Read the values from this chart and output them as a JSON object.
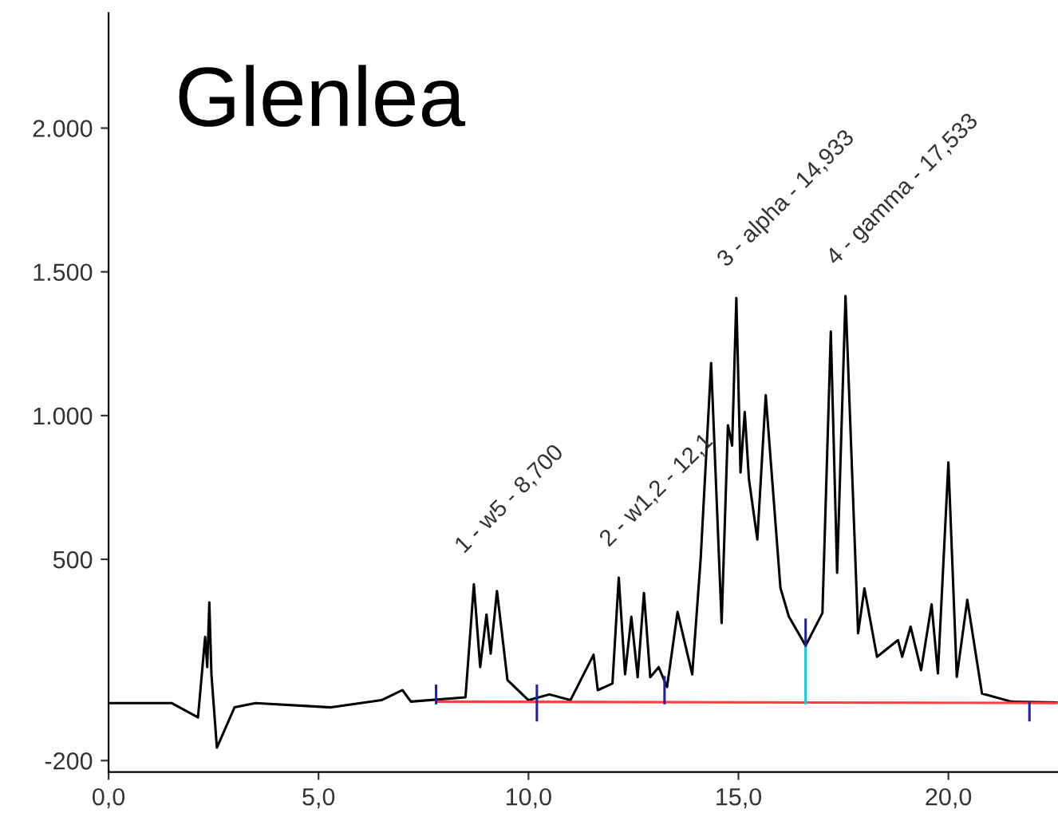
{
  "chart_data": {
    "type": "line",
    "title": "Glenlea",
    "series": [
      {
        "color": "#000000",
        "x": [
          0,
          1.5,
          2.13,
          2.3,
          2.35,
          2.4,
          2.45,
          2.58,
          3.0,
          3.5,
          5.3,
          6.5,
          7.0,
          7.2,
          8.5,
          8.7,
          8.85,
          9.0,
          9.1,
          9.25,
          9.5,
          10.0,
          10.5,
          11.0,
          11.55,
          11.65,
          12.0,
          12.15,
          12.3,
          12.45,
          12.6,
          12.75,
          12.9,
          13.1,
          13.3,
          13.55,
          13.9,
          14.1,
          14.35,
          14.6,
          14.75,
          14.85,
          14.95,
          15.05,
          15.15,
          15.25,
          15.45,
          15.65,
          16.0,
          16.2,
          16.6,
          17.0,
          17.2,
          17.35,
          17.55,
          17.85,
          18.0,
          18.3,
          18.8,
          18.9,
          19.1,
          19.35,
          19.6,
          19.75,
          20.0,
          20.2,
          20.45,
          20.8,
          21.5,
          22.6
        ],
        "values": [
          0,
          0,
          -50,
          230,
          125,
          350,
          100,
          -155,
          -15,
          0,
          -15,
          10,
          45,
          5,
          20,
          413,
          125,
          308,
          172,
          390,
          80,
          10,
          30,
          10,
          168,
          45,
          68,
          436,
          100,
          300,
          90,
          383,
          90,
          125,
          56,
          317,
          100,
          500,
          1183,
          278,
          966,
          896,
          1409,
          802,
          1013,
          779,
          569,
          1071,
          401,
          301,
          200,
          313,
          1292,
          453,
          1416,
          243,
          399,
          161,
          219,
          161,
          266,
          114,
          343,
          103,
          837,
          91,
          359,
          33,
          5,
          2
        ]
      },
      {
        "color": "#ff4040",
        "x": [
          7.8,
          22.6
        ],
        "values": [
          5,
          0
        ]
      },
      {
        "color": "#00d0e0",
        "x": [
          16.6,
          16.6
        ],
        "values": [
          0,
          200
        ]
      },
      {
        "color": "#2020a0",
        "x": [
          16.6,
          16.6
        ],
        "values": [
          200,
          290
        ]
      },
      {
        "color": "#2020a0",
        "x": [
          7.8,
          7.8
        ],
        "values": [
          0,
          60
        ]
      },
      {
        "color": "#2020a0",
        "x": [
          10.2,
          10.2
        ],
        "values": [
          -60,
          60
        ]
      },
      {
        "color": "#2020a0",
        "x": [
          13.24,
          13.24
        ],
        "values": [
          0,
          90
        ]
      },
      {
        "color": "#2020a0",
        "x": [
          21.93,
          21.93
        ],
        "values": [
          -60,
          0
        ]
      }
    ],
    "annotations": [
      {
        "text": "1 - w5 - 8,700",
        "x": 8.7,
        "y": 413
      },
      {
        "text": "2 - w1,2 - 12,1",
        "x": 12.15,
        "y": 436
      },
      {
        "text": "3 - alpha - 14,933",
        "x": 14.95,
        "y": 1409
      },
      {
        "text": "4 - gamma - 17,533",
        "x": 17.55,
        "y": 1416
      }
    ],
    "xlim": [
      0,
      22.6
    ],
    "ylim": [
      -240,
      2400
    ],
    "xticks": [
      {
        "value": 0,
        "label": "0,0"
      },
      {
        "value": 5,
        "label": "5,0"
      },
      {
        "value": 10,
        "label": "10,0"
      },
      {
        "value": 15,
        "label": "15,0"
      },
      {
        "value": 20,
        "label": "20,0"
      }
    ],
    "yticks": [
      -200,
      500,
      {
        "value": 1000,
        "label": "1.000"
      },
      {
        "value": 1500,
        "label": "1.500"
      },
      {
        "value": 2000,
        "label": "2.000"
      }
    ],
    "grid": false,
    "legend": false,
    "marker": "none",
    "line_style": "solid"
  }
}
